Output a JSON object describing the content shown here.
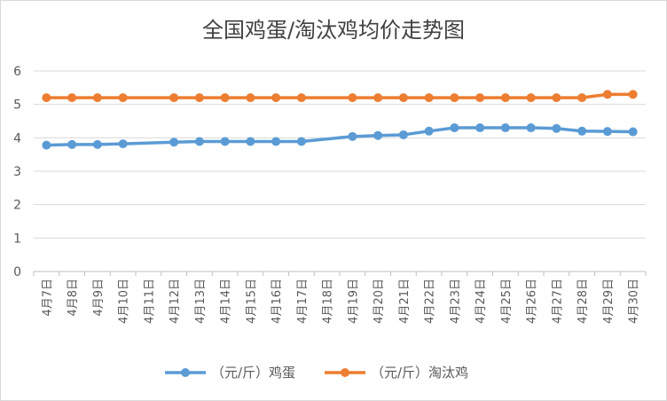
{
  "chart_data": {
    "type": "line",
    "title": "全国鸡蛋/淘汰鸡均价走势图",
    "xlabel": "",
    "ylabel": "",
    "ylim": [
      0,
      6
    ],
    "yticks": [
      "0",
      "1",
      "2",
      "3",
      "4",
      "5",
      "6"
    ],
    "grid": "horizontal",
    "legend": "bottom",
    "categories": [
      "4月7日",
      "4月8日",
      "4月9日",
      "4月10日",
      "4月11日",
      "4月12日",
      "4月13日",
      "4月14日",
      "4月15日",
      "4月16日",
      "4月17日",
      "4月18日",
      "4月19日",
      "4月20日",
      "4月21日",
      "4月22日",
      "4月23日",
      "4月24日",
      "4月25日",
      "4月26日",
      "4月27日",
      "4月28日",
      "4月29日",
      "4月30日"
    ],
    "series": [
      {
        "name": "（元/斤）鸡蛋",
        "color": "#5b9bd5",
        "values": [
          3.78,
          3.8,
          3.8,
          3.82,
          null,
          3.87,
          3.89,
          3.89,
          3.89,
          3.89,
          3.89,
          null,
          4.04,
          4.07,
          4.09,
          4.2,
          4.3,
          4.3,
          4.3,
          4.3,
          4.28,
          4.2,
          4.19,
          4.18
        ]
      },
      {
        "name": "（元/斤）淘汰鸡",
        "color": "#ed7d31",
        "values": [
          5.2,
          5.2,
          5.2,
          5.2,
          null,
          5.2,
          5.2,
          5.2,
          5.2,
          5.2,
          5.2,
          null,
          5.2,
          5.2,
          5.2,
          5.2,
          5.2,
          5.2,
          5.2,
          5.2,
          5.2,
          5.2,
          5.3,
          5.3
        ]
      }
    ]
  }
}
